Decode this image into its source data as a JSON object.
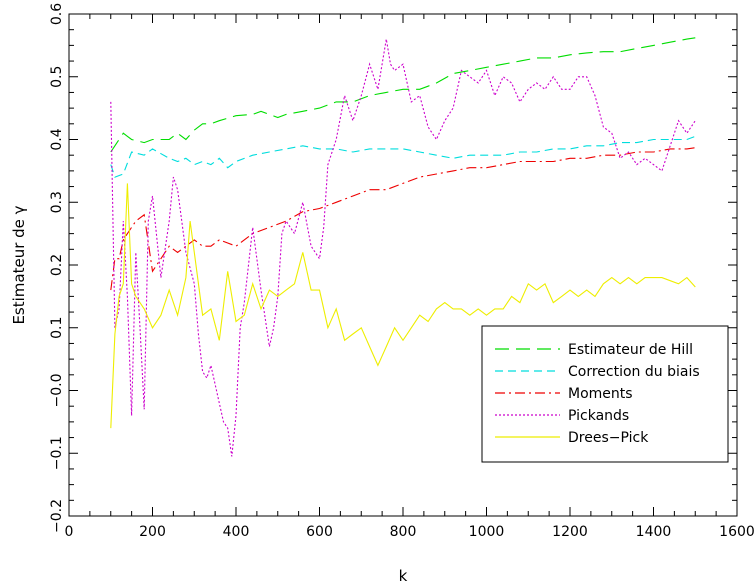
{
  "chart_data": {
    "type": "line",
    "title": "",
    "xlabel": "k",
    "ylabel": "Estimateur de γ",
    "xlim": [
      0,
      1600
    ],
    "ylim": [
      -0.2,
      0.6
    ],
    "xticks": [
      0,
      200,
      400,
      600,
      800,
      1000,
      1200,
      1400,
      1600
    ],
    "yticks": [
      -0.2,
      -0.1,
      0.0,
      0.1,
      0.2,
      0.3,
      0.4,
      0.5,
      0.6
    ],
    "xtick_labels": [
      "0",
      "200",
      "400",
      "600",
      "800",
      "1000",
      "1200",
      "1400",
      "1600"
    ],
    "ytick_labels": [
      "−0.2",
      "−0.1",
      "−0.0",
      "0.1",
      "0.2",
      "0.3",
      "0.4",
      "0.5",
      "0.6"
    ],
    "grid": false,
    "legend_position": "lower-right",
    "series": [
      {
        "name": "Estimateur de Hill",
        "color": "#00dd00",
        "dash": "long-dash",
        "x": [
          100,
          110,
          130,
          150,
          180,
          200,
          240,
          260,
          280,
          300,
          320,
          340,
          360,
          400,
          440,
          460,
          480,
          500,
          520,
          560,
          600,
          640,
          680,
          720,
          760,
          800,
          840,
          860,
          880,
          920,
          960,
          1000,
          1040,
          1080,
          1120,
          1160,
          1200,
          1240,
          1280,
          1320,
          1360,
          1400,
          1440,
          1480,
          1500
        ],
        "y": [
          0.38,
          0.39,
          0.41,
          0.4,
          0.395,
          0.4,
          0.4,
          0.41,
          0.4,
          0.415,
          0.425,
          0.425,
          0.43,
          0.438,
          0.44,
          0.445,
          0.44,
          0.435,
          0.44,
          0.445,
          0.45,
          0.46,
          0.46,
          0.47,
          0.475,
          0.48,
          0.48,
          0.485,
          0.49,
          0.505,
          0.51,
          0.515,
          0.52,
          0.525,
          0.53,
          0.53,
          0.535,
          0.538,
          0.54,
          0.54,
          0.545,
          0.55,
          0.555,
          0.56,
          0.562
        ]
      },
      {
        "name": "Correction du biais",
        "color": "#00dddd",
        "dash": "dash",
        "x": [
          100,
          110,
          130,
          150,
          180,
          200,
          240,
          260,
          280,
          300,
          320,
          340,
          360,
          380,
          400,
          440,
          480,
          520,
          560,
          600,
          640,
          680,
          720,
          760,
          800,
          840,
          880,
          920,
          960,
          1000,
          1040,
          1080,
          1120,
          1160,
          1200,
          1240,
          1280,
          1320,
          1360,
          1400,
          1440,
          1480,
          1500
        ],
        "y": [
          0.36,
          0.34,
          0.345,
          0.38,
          0.375,
          0.385,
          0.37,
          0.365,
          0.37,
          0.36,
          0.365,
          0.36,
          0.37,
          0.355,
          0.365,
          0.375,
          0.38,
          0.385,
          0.39,
          0.385,
          0.385,
          0.38,
          0.385,
          0.385,
          0.385,
          0.38,
          0.375,
          0.37,
          0.375,
          0.375,
          0.375,
          0.38,
          0.38,
          0.385,
          0.385,
          0.39,
          0.39,
          0.395,
          0.395,
          0.4,
          0.4,
          0.4,
          0.405
        ]
      },
      {
        "name": "Moments",
        "color": "#ee0000",
        "dash": "dash-dot",
        "x": [
          100,
          110,
          120,
          130,
          140,
          160,
          180,
          200,
          220,
          240,
          260,
          280,
          300,
          320,
          340,
          360,
          380,
          400,
          440,
          480,
          520,
          560,
          600,
          640,
          680,
          720,
          760,
          800,
          840,
          880,
          920,
          960,
          1000,
          1040,
          1080,
          1120,
          1160,
          1200,
          1240,
          1280,
          1320,
          1360,
          1400,
          1440,
          1480,
          1500
        ],
        "y": [
          0.16,
          0.21,
          0.21,
          0.24,
          0.25,
          0.27,
          0.28,
          0.19,
          0.21,
          0.23,
          0.22,
          0.23,
          0.24,
          0.23,
          0.23,
          0.24,
          0.235,
          0.23,
          0.25,
          0.26,
          0.27,
          0.285,
          0.29,
          0.3,
          0.31,
          0.32,
          0.32,
          0.33,
          0.34,
          0.345,
          0.35,
          0.355,
          0.355,
          0.36,
          0.365,
          0.365,
          0.365,
          0.37,
          0.37,
          0.375,
          0.375,
          0.38,
          0.38,
          0.385,
          0.385,
          0.387
        ]
      },
      {
        "name": "Pickands",
        "color": "#cc00cc",
        "dash": "dot",
        "x": [
          100,
          110,
          120,
          130,
          140,
          150,
          160,
          170,
          180,
          190,
          200,
          220,
          240,
          250,
          260,
          280,
          300,
          310,
          320,
          330,
          340,
          350,
          360,
          370,
          380,
          390,
          400,
          410,
          420,
          430,
          440,
          460,
          480,
          490,
          500,
          510,
          520,
          540,
          560,
          580,
          600,
          610,
          620,
          640,
          660,
          680,
          700,
          720,
          740,
          760,
          770,
          780,
          800,
          820,
          840,
          860,
          880,
          900,
          920,
          940,
          960,
          980,
          1000,
          1020,
          1040,
          1060,
          1080,
          1100,
          1120,
          1140,
          1160,
          1180,
          1200,
          1220,
          1240,
          1260,
          1280,
          1300,
          1320,
          1340,
          1360,
          1380,
          1400,
          1420,
          1440,
          1460,
          1480,
          1500
        ],
        "y": [
          0.46,
          0.1,
          0.13,
          0.27,
          0.15,
          -0.04,
          0.22,
          0.1,
          -0.03,
          0.27,
          0.31,
          0.18,
          0.27,
          0.34,
          0.32,
          0.22,
          0.17,
          0.09,
          0.03,
          0.02,
          0.04,
          0.01,
          -0.02,
          -0.05,
          -0.06,
          -0.105,
          -0.04,
          0.1,
          0.14,
          0.2,
          0.26,
          0.16,
          0.07,
          0.1,
          0.15,
          0.25,
          0.27,
          0.25,
          0.3,
          0.23,
          0.21,
          0.26,
          0.36,
          0.4,
          0.47,
          0.43,
          0.47,
          0.52,
          0.48,
          0.56,
          0.52,
          0.51,
          0.52,
          0.46,
          0.47,
          0.42,
          0.4,
          0.43,
          0.45,
          0.51,
          0.5,
          0.49,
          0.51,
          0.47,
          0.5,
          0.49,
          0.46,
          0.48,
          0.49,
          0.48,
          0.5,
          0.48,
          0.48,
          0.5,
          0.5,
          0.47,
          0.42,
          0.41,
          0.37,
          0.38,
          0.36,
          0.37,
          0.36,
          0.35,
          0.39,
          0.43,
          0.41,
          0.43
        ]
      },
      {
        "name": "Drees−Pick",
        "color": "#eeee00",
        "dash": "solid",
        "x": [
          100,
          110,
          120,
          130,
          140,
          150,
          160,
          180,
          200,
          220,
          240,
          260,
          280,
          290,
          300,
          320,
          340,
          360,
          380,
          400,
          420,
          440,
          460,
          480,
          500,
          520,
          540,
          560,
          580,
          600,
          620,
          640,
          660,
          680,
          700,
          720,
          740,
          760,
          780,
          800,
          820,
          840,
          860,
          880,
          900,
          920,
          940,
          960,
          980,
          1000,
          1020,
          1040,
          1060,
          1080,
          1100,
          1120,
          1140,
          1160,
          1180,
          1200,
          1220,
          1240,
          1260,
          1280,
          1300,
          1320,
          1340,
          1360,
          1380,
          1400,
          1420,
          1440,
          1460,
          1480,
          1500
        ],
        "y": [
          -0.06,
          0.09,
          0.15,
          0.17,
          0.33,
          0.17,
          0.15,
          0.13,
          0.1,
          0.12,
          0.16,
          0.12,
          0.18,
          0.27,
          0.22,
          0.12,
          0.13,
          0.08,
          0.19,
          0.11,
          0.12,
          0.17,
          0.13,
          0.16,
          0.15,
          0.16,
          0.17,
          0.22,
          0.16,
          0.16,
          0.1,
          0.13,
          0.08,
          0.09,
          0.1,
          0.07,
          0.04,
          0.07,
          0.1,
          0.08,
          0.1,
          0.12,
          0.11,
          0.13,
          0.14,
          0.13,
          0.13,
          0.12,
          0.13,
          0.12,
          0.13,
          0.13,
          0.15,
          0.14,
          0.17,
          0.16,
          0.17,
          0.14,
          0.15,
          0.16,
          0.15,
          0.16,
          0.15,
          0.17,
          0.18,
          0.17,
          0.18,
          0.17,
          0.18,
          0.18,
          0.18,
          0.175,
          0.17,
          0.18,
          0.165
        ]
      }
    ]
  }
}
